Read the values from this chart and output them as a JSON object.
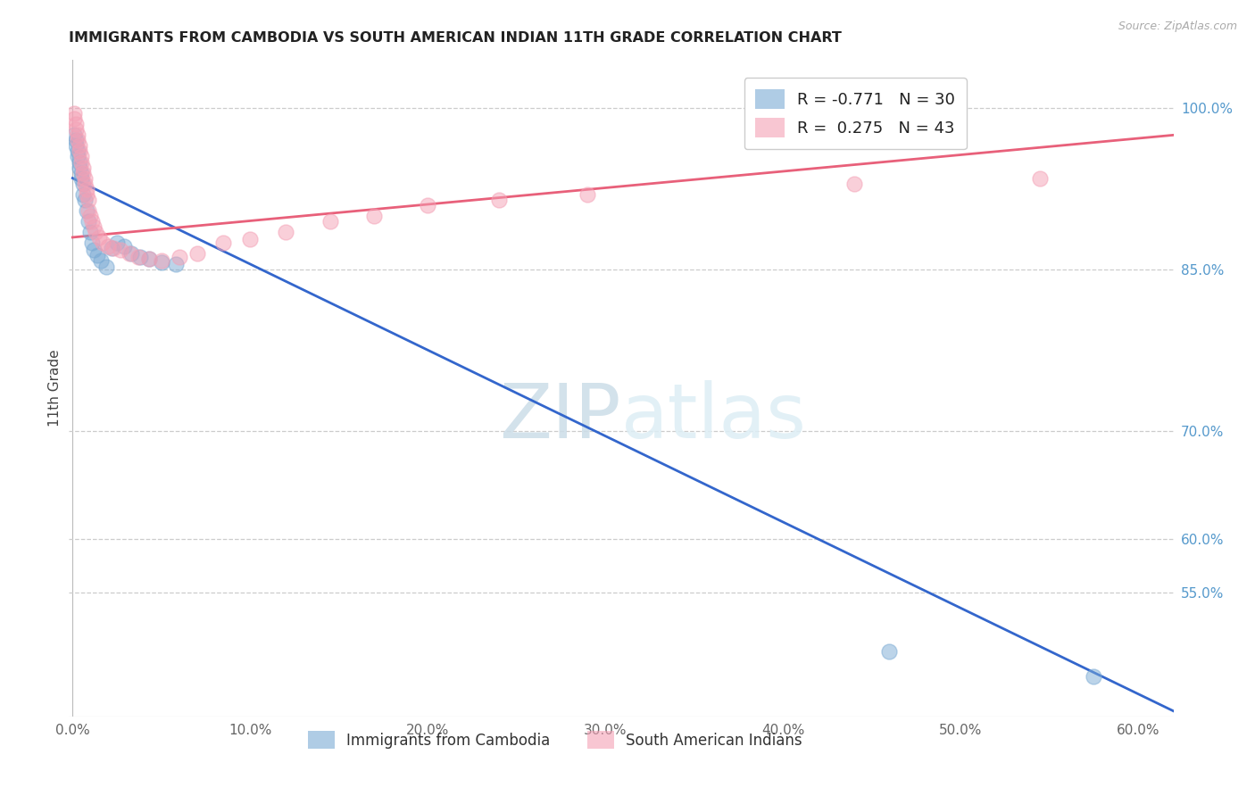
{
  "title": "IMMIGRANTS FROM CAMBODIA VS SOUTH AMERICAN INDIAN 11TH GRADE CORRELATION CHART",
  "source": "Source: ZipAtlas.com",
  "ylabel": "11th Grade",
  "legend1_label": "R = -0.771   N = 30",
  "legend2_label": "R =  0.275   N = 43",
  "legend_bottom_1": "Immigrants from Cambodia",
  "legend_bottom_2": "South American Indians",
  "cambodia_color": "#7aaad4",
  "southamerican_color": "#f4a0b5",
  "trendline_cambodia_color": "#3366cc",
  "trendline_sa_color": "#e8607a",
  "watermark_zip": "ZIP",
  "watermark_atlas": "atlas",
  "xlim": [
    -0.002,
    0.62
  ],
  "ylim": [
    0.435,
    1.045
  ],
  "ytick_positions": [
    1.0,
    0.85,
    0.7,
    0.6,
    0.55
  ],
  "ytick_labels": [
    "100.0%",
    "85.0%",
    "70.0%",
    "60.0%",
    "55.0%"
  ],
  "xtick_positions": [
    0.0,
    0.1,
    0.2,
    0.3,
    0.4,
    0.5,
    0.6
  ],
  "xtick_labels": [
    "0.0%",
    "10.0%",
    "20.0%",
    "30.0%",
    "40.0%",
    "50.0%",
    "60.0%"
  ],
  "camb_trend": [
    0.0,
    0.935,
    0.62,
    0.44
  ],
  "sa_trend": [
    0.0,
    0.88,
    0.62,
    0.975
  ],
  "cambodia_x": [
    0.001,
    0.002,
    0.002,
    0.003,
    0.003,
    0.004,
    0.004,
    0.005,
    0.005,
    0.006,
    0.006,
    0.007,
    0.008,
    0.009,
    0.01,
    0.011,
    0.012,
    0.014,
    0.016,
    0.019,
    0.022,
    0.025,
    0.029,
    0.033,
    0.038,
    0.043,
    0.05,
    0.058,
    0.46,
    0.575
  ],
  "cambodia_y": [
    0.975,
    0.97,
    0.965,
    0.96,
    0.955,
    0.95,
    0.945,
    0.94,
    0.935,
    0.93,
    0.92,
    0.915,
    0.905,
    0.895,
    0.885,
    0.875,
    0.868,
    0.863,
    0.858,
    0.853,
    0.87,
    0.875,
    0.872,
    0.865,
    0.862,
    0.86,
    0.857,
    0.855,
    0.495,
    0.472
  ],
  "sa_x": [
    0.001,
    0.001,
    0.002,
    0.002,
    0.003,
    0.003,
    0.004,
    0.004,
    0.005,
    0.005,
    0.006,
    0.006,
    0.007,
    0.007,
    0.008,
    0.008,
    0.009,
    0.009,
    0.01,
    0.011,
    0.012,
    0.013,
    0.015,
    0.017,
    0.02,
    0.023,
    0.027,
    0.032,
    0.037,
    0.043,
    0.05,
    0.06,
    0.07,
    0.085,
    0.1,
    0.12,
    0.145,
    0.17,
    0.2,
    0.24,
    0.29,
    0.44,
    0.545
  ],
  "sa_y": [
    0.995,
    0.99,
    0.985,
    0.98,
    0.975,
    0.97,
    0.965,
    0.96,
    0.955,
    0.95,
    0.945,
    0.94,
    0.935,
    0.93,
    0.925,
    0.92,
    0.915,
    0.905,
    0.9,
    0.895,
    0.89,
    0.885,
    0.88,
    0.875,
    0.872,
    0.87,
    0.868,
    0.865,
    0.862,
    0.86,
    0.858,
    0.862,
    0.865,
    0.875,
    0.878,
    0.885,
    0.895,
    0.9,
    0.91,
    0.915,
    0.92,
    0.93,
    0.935
  ]
}
